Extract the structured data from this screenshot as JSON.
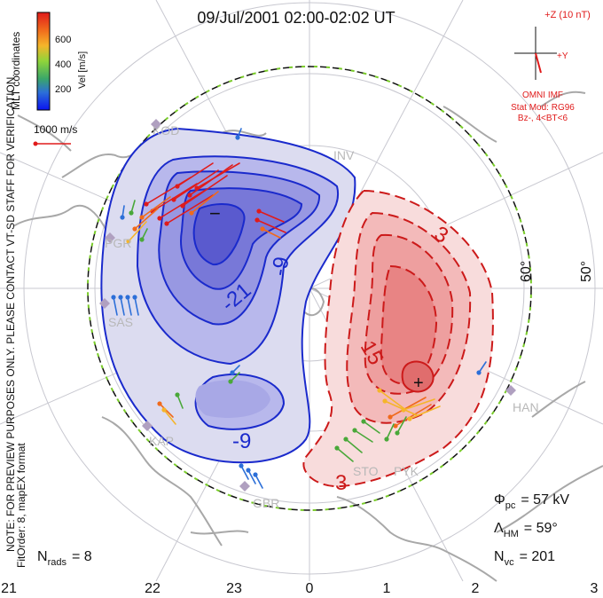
{
  "title": "09/Jul/2001 02:00-02:02 UT",
  "coords_label": "MLT coordinates",
  "colorbar": {
    "label": "Vel [m/s]",
    "ticks": [
      "600",
      "400",
      "200"
    ],
    "colors": [
      "#0a1cf0",
      "#2c6fd8",
      "#3aa66a",
      "#8fd43a",
      "#f5b52a",
      "#f06a1c",
      "#e01b1b"
    ]
  },
  "vector_scale": "1000 m/s",
  "side_note": "NOTE: FOR PREVIEW PURPOSES ONLY. PLEASE CONTACT VT-SD STAFF FOR VERIFICATION.",
  "fit_order": "FitOrder: 8, mapEX format",
  "imf": {
    "axis_z": "+Z (10 nT)",
    "axis_y": "+Y",
    "source": "OMNI IMF",
    "model": "Stat Mod: RG96",
    "condition": "Bz-, 4<BT<6"
  },
  "stations": [
    "KOD",
    "PGR",
    "SAS",
    "KAP",
    "GBR",
    "STO",
    "PYK",
    "HAN",
    "INV"
  ],
  "lat_labels": [
    "60°",
    "50°"
  ],
  "stats": {
    "phi_sym": "Φ",
    "phi_sub": "pc",
    "phi_value": "= 57 kV",
    "lambda_sym": "Λ",
    "lambda_sub": "HM",
    "lambda_value": "= 59°",
    "nvc_sym": "N",
    "nvc_sub": "vc",
    "nvc_value": "= 201",
    "nrads_sym": "N",
    "nrads_sub": "rads",
    "nrads_value": "= 8"
  },
  "chart_data": {
    "type": "polar convection map",
    "mlt_ticks": [
      "21",
      "22",
      "23",
      "0",
      "1",
      "2",
      "3"
    ],
    "contours_negative": [
      "-3",
      "-9",
      "-21",
      "-9",
      "-3"
    ],
    "contours_positive": [
      "3",
      "-3",
      "15",
      "3"
    ],
    "min_marker": "−",
    "max_marker": "+",
    "colors": {
      "negative": "#1a2acc",
      "positive": "#cc1a1a",
      "hmb": "#7acc2a"
    }
  }
}
